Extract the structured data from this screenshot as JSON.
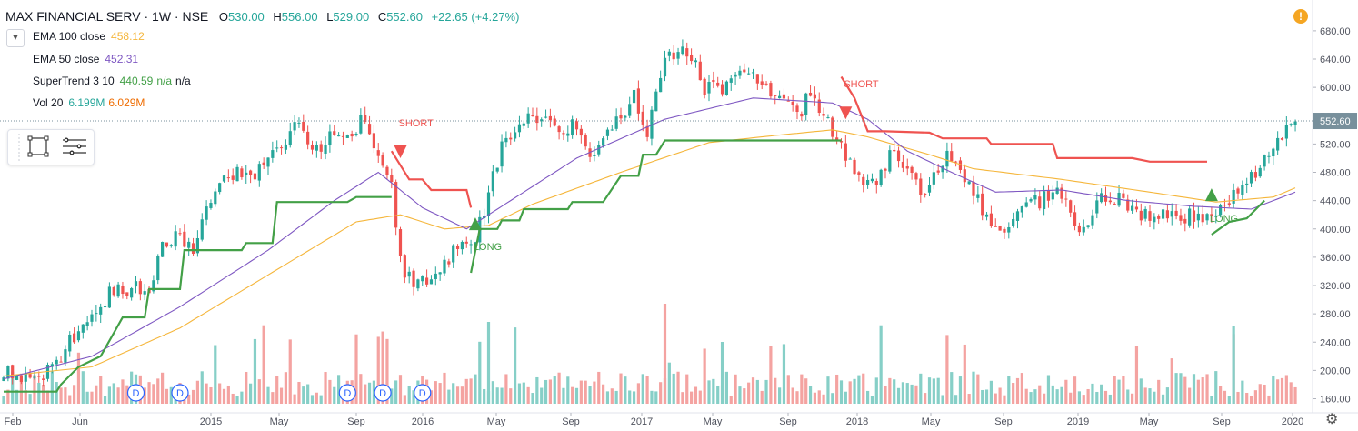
{
  "header": {
    "symbol": "MAX FINANCIAL SERV · 1W · NSE",
    "open_k": "O",
    "open": "530.00",
    "high_k": "H",
    "high": "556.00",
    "low_k": "L",
    "low": "529.00",
    "close_k": "C",
    "close": "552.60",
    "change": "+22.65 (+4.27%)"
  },
  "indicators": [
    {
      "name": "EMA 100 close",
      "value": "458.12",
      "color": "#f5b63b"
    },
    {
      "name": "EMA 50 close",
      "value": "452.31",
      "color": "#7e57c2"
    },
    {
      "name": "SuperTrend 3 10",
      "value": "440.59",
      "extra1": "n/a",
      "extra2": "n/a",
      "color": "#43a047"
    },
    {
      "name": "Vol 20",
      "value": "6.199M",
      "value2": "6.029M",
      "color": "#26a69a",
      "color2": "#ef6c00"
    }
  ],
  "icons": {
    "collapse": "chevron-down-icon",
    "toolbox": [
      "rectangle-icon",
      "lines-icon"
    ],
    "alert": "warning-icon",
    "settings": "gear-icon"
  },
  "colors": {
    "up": "#26a69a",
    "down": "#ef5350",
    "vol_up": "#86cfc7",
    "vol_down": "#f4a3a1",
    "ema100": "#f5b63b",
    "ema50": "#7e57c2",
    "st_green": "#43a047",
    "st_red": "#ef5350",
    "price_label": "#78909c"
  },
  "alert_glyph": "!",
  "settings_glyph": "⚙",
  "chart_data": {
    "type": "candlestick",
    "title": "MAX FINANCIAL SERV · 1W · NSE",
    "last_price_label": "552.60",
    "y_ticks": [
      680.0,
      640.0,
      600.0,
      560.0,
      520.0,
      480.0,
      440.0,
      400.0,
      360.0,
      320.0,
      280.0,
      240.0,
      200.0,
      160.0
    ],
    "ylim": [
      138,
      690
    ],
    "x_ticks": [
      "Feb",
      "Jun",
      "2015",
      "May",
      "Sep",
      "2016",
      "May",
      "Sep",
      "2017",
      "May",
      "Sep",
      "2018",
      "May",
      "Sep",
      "2019",
      "May",
      "Sep",
      "2020"
    ],
    "price_anchors": [
      [
        0,
        200
      ],
      [
        5,
        188
      ],
      [
        10,
        198
      ],
      [
        15,
        240
      ],
      [
        20,
        270
      ],
      [
        24,
        310
      ],
      [
        30,
        320
      ],
      [
        33,
        305
      ],
      [
        36,
        375
      ],
      [
        40,
        390
      ],
      [
        43,
        372
      ],
      [
        46,
        420
      ],
      [
        48,
        465
      ],
      [
        52,
        478
      ],
      [
        56,
        470
      ],
      [
        60,
        500
      ],
      [
        64,
        522
      ],
      [
        67,
        555
      ],
      [
        70,
        500
      ],
      [
        74,
        528
      ],
      [
        78,
        535
      ],
      [
        82,
        555
      ],
      [
        85,
        495
      ],
      [
        88,
        470
      ],
      [
        90,
        350
      ],
      [
        93,
        320
      ],
      [
        96,
        330
      ],
      [
        100,
        350
      ],
      [
        104,
        380
      ],
      [
        107,
        385
      ],
      [
        110,
        450
      ],
      [
        113,
        520
      ],
      [
        116,
        530
      ],
      [
        120,
        560
      ],
      [
        123,
        550
      ],
      [
        126,
        540
      ],
      [
        130,
        545
      ],
      [
        133,
        500
      ],
      [
        136,
        540
      ],
      [
        140,
        555
      ],
      [
        143,
        590
      ],
      [
        146,
        540
      ],
      [
        150,
        630
      ],
      [
        153,
        660
      ],
      [
        156,
        640
      ],
      [
        159,
        600
      ],
      [
        162,
        600
      ],
      [
        166,
        610
      ],
      [
        170,
        620
      ],
      [
        173,
        600
      ],
      [
        176,
        580
      ],
      [
        180,
        560
      ],
      [
        183,
        590
      ],
      [
        186,
        560
      ],
      [
        189,
        525
      ],
      [
        192,
        490
      ],
      [
        195,
        460
      ],
      [
        198,
        470
      ],
      [
        202,
        510
      ],
      [
        205,
        490
      ],
      [
        208,
        445
      ],
      [
        211,
        470
      ],
      [
        214,
        505
      ],
      [
        217,
        480
      ],
      [
        220,
        455
      ],
      [
        223,
        420
      ],
      [
        226,
        390
      ],
      [
        229,
        410
      ],
      [
        232,
        440
      ],
      [
        235,
        440
      ],
      [
        238,
        455
      ],
      [
        241,
        432
      ],
      [
        244,
        400
      ],
      [
        247,
        425
      ],
      [
        250,
        450
      ],
      [
        254,
        440
      ],
      [
        258,
        420
      ],
      [
        262,
        425
      ],
      [
        266,
        415
      ],
      [
        270,
        420
      ],
      [
        274,
        410
      ],
      [
        278,
        440
      ],
      [
        282,
        460
      ],
      [
        286,
        505
      ],
      [
        290,
        535
      ],
      [
        293,
        553
      ]
    ],
    "ema100_anchors": [
      [
        0,
        192
      ],
      [
        20,
        205
      ],
      [
        40,
        260
      ],
      [
        60,
        335
      ],
      [
        80,
        410
      ],
      [
        90,
        420
      ],
      [
        100,
        400
      ],
      [
        110,
        405
      ],
      [
        120,
        435
      ],
      [
        140,
        480
      ],
      [
        160,
        522
      ],
      [
        175,
        532
      ],
      [
        188,
        540
      ],
      [
        196,
        530
      ],
      [
        210,
        505
      ],
      [
        220,
        485
      ],
      [
        240,
        470
      ],
      [
        260,
        452
      ],
      [
        275,
        438
      ],
      [
        288,
        445
      ],
      [
        293,
        458
      ]
    ],
    "ema50_anchors": [
      [
        0,
        188
      ],
      [
        20,
        220
      ],
      [
        40,
        290
      ],
      [
        60,
        370
      ],
      [
        75,
        440
      ],
      [
        85,
        480
      ],
      [
        95,
        430
      ],
      [
        105,
        400
      ],
      [
        115,
        440
      ],
      [
        130,
        500
      ],
      [
        150,
        555
      ],
      [
        170,
        585
      ],
      [
        188,
        578
      ],
      [
        196,
        555
      ],
      [
        205,
        510
      ],
      [
        215,
        480
      ],
      [
        225,
        452
      ],
      [
        240,
        455
      ],
      [
        255,
        440
      ],
      [
        270,
        432
      ],
      [
        283,
        428
      ],
      [
        293,
        452
      ]
    ],
    "supertrend_segments": [
      {
        "trend": "up",
        "points": [
          [
            0,
            170
          ],
          [
            12,
            170
          ],
          [
            13,
            180
          ],
          [
            17,
            205
          ],
          [
            22,
            220
          ],
          [
            27,
            275
          ],
          [
            32,
            275
          ],
          [
            33,
            315
          ],
          [
            40,
            315
          ],
          [
            41,
            370
          ],
          [
            50,
            370
          ],
          [
            54,
            370
          ],
          [
            55,
            380
          ],
          [
            61,
            380
          ],
          [
            62,
            438
          ],
          [
            78,
            438
          ],
          [
            80,
            445
          ],
          [
            88,
            445
          ]
        ]
      },
      {
        "trend": "down",
        "points": [
          [
            88,
            510
          ],
          [
            92,
            470
          ],
          [
            95,
            470
          ],
          [
            97,
            455
          ],
          [
            105,
            455
          ],
          [
            106,
            430
          ]
        ]
      },
      {
        "trend": "up",
        "points": [
          [
            106,
            338
          ],
          [
            108,
            400
          ],
          [
            112,
            400
          ],
          [
            113,
            412
          ],
          [
            117,
            412
          ],
          [
            118,
            428
          ],
          [
            128,
            428
          ],
          [
            129,
            438
          ],
          [
            136,
            438
          ],
          [
            140,
            475
          ],
          [
            144,
            475
          ],
          [
            145,
            505
          ],
          [
            148,
            505
          ],
          [
            150,
            525
          ],
          [
            160,
            525
          ],
          [
            190,
            525
          ]
        ]
      },
      {
        "trend": "down",
        "points": [
          [
            190,
            615
          ],
          [
            193,
            585
          ],
          [
            196,
            538
          ],
          [
            198,
            538
          ],
          [
            200,
            538
          ],
          [
            210,
            536
          ],
          [
            213,
            528
          ],
          [
            223,
            528
          ],
          [
            224,
            520
          ],
          [
            238,
            520
          ],
          [
            239,
            500
          ],
          [
            256,
            500
          ],
          [
            260,
            495
          ],
          [
            273,
            495
          ]
        ]
      },
      {
        "trend": "up",
        "points": [
          [
            274,
            392
          ],
          [
            278,
            410
          ],
          [
            282,
            415
          ],
          [
            286,
            440
          ]
        ]
      }
    ],
    "signals": [
      {
        "label": "SHORT",
        "type": "short",
        "week": 90,
        "price": 505,
        "label_price": 545
      },
      {
        "label": "LONG",
        "type": "long",
        "week": 107,
        "price": 406,
        "label_price": 370
      },
      {
        "label": "SHORT",
        "type": "short",
        "week": 191,
        "price": 560,
        "label_price": 600
      },
      {
        "label": "LONG",
        "type": "long",
        "week": 274,
        "price": 447,
        "label_price": 410
      }
    ],
    "dividends": [
      {
        "label": "D",
        "week": 30
      },
      {
        "label": "D",
        "week": 40
      },
      {
        "label": "D",
        "week": 78
      },
      {
        "label": "D",
        "week": 86
      },
      {
        "label": "D",
        "week": 95
      }
    ]
  }
}
